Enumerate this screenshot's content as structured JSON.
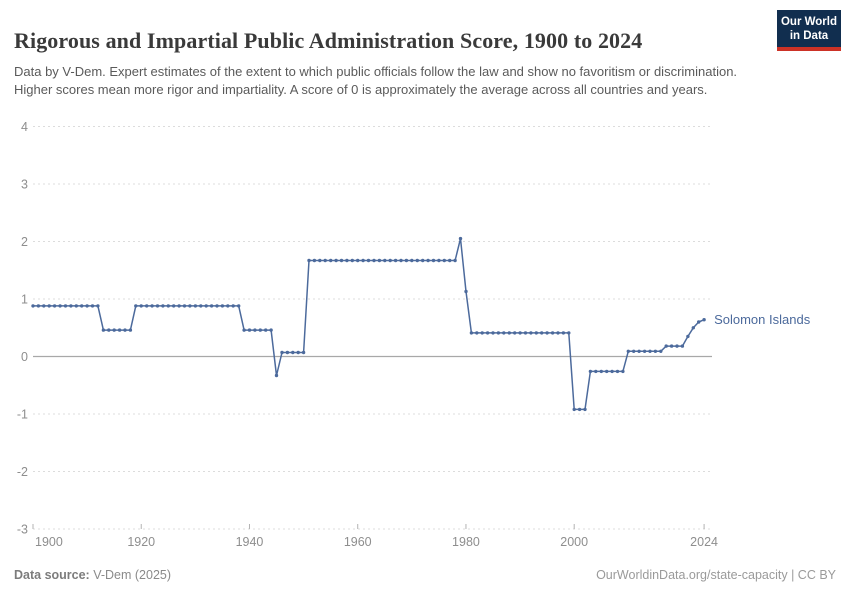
{
  "header": {
    "title": "Rigorous and Impartial Public Administration Score, 1900 to 2024",
    "subtitle": "Data by V-Dem. Expert estimates of the extent to which public officials follow the law and show no favoritism or discrimination. Higher scores mean more rigor and impartiality. A score of 0 is approximately the average across all countries and years.",
    "logo": {
      "line1": "Our World",
      "line2": "in Data"
    }
  },
  "footer": {
    "source_label": "Data source:",
    "source_value": " V-Dem (2025)",
    "note": "OurWorldinData.org/state-capacity | CC BY"
  },
  "colors": {
    "series": "#4c6a9c",
    "grid": "#dcdcdc",
    "zero_line": "#a8a8a8",
    "tick": "#b3b3b3",
    "axis_label": "#8e8e8e",
    "logo_bg": "#112e4f",
    "logo_stripe": "#cc3226"
  },
  "chart_data": {
    "type": "line",
    "title": "Rigorous and Impartial Public Administration Score, 1900 to 2024",
    "entity": "Solomon Islands",
    "xlabel": "",
    "ylabel": "",
    "xlim": [
      1900,
      2024
    ],
    "ylim": [
      -3,
      4
    ],
    "x_ticks": [
      1900,
      1920,
      1940,
      1960,
      1980,
      2000,
      2024
    ],
    "y_ticks": [
      4,
      3,
      2,
      1,
      0,
      -1,
      -2,
      -3
    ],
    "grid": "dashed-horizontal",
    "zero_line": true,
    "legend_position": "end-of-line-label",
    "series": [
      {
        "name": "Solomon Islands",
        "color": "#4c6a9c",
        "runs": [
          {
            "from": 1900,
            "to": 1912,
            "value": 0.88
          },
          {
            "from": 1913,
            "to": 1918,
            "value": 0.46
          },
          {
            "from": 1919,
            "to": 1938,
            "value": 0.88
          },
          {
            "from": 1939,
            "to": 1944,
            "value": 0.46
          },
          {
            "from": 1945,
            "to": 1945,
            "value": -0.33
          },
          {
            "from": 1946,
            "to": 1950,
            "value": 0.07
          },
          {
            "from": 1951,
            "to": 1978,
            "value": 1.67
          },
          {
            "from": 1979,
            "to": 1979,
            "value": 2.05
          },
          {
            "from": 1980,
            "to": 1980,
            "value": 1.13
          },
          {
            "from": 1981,
            "to": 1999,
            "value": 0.41
          },
          {
            "from": 2000,
            "to": 2002,
            "value": -0.92
          },
          {
            "from": 2003,
            "to": 2009,
            "value": -0.26
          },
          {
            "from": 2010,
            "to": 2016,
            "value": 0.09
          },
          {
            "from": 2017,
            "to": 2020,
            "value": 0.18
          },
          {
            "from": 2021,
            "to": 2021,
            "value": 0.35
          },
          {
            "from": 2022,
            "to": 2022,
            "value": 0.5
          },
          {
            "from": 2023,
            "to": 2023,
            "value": 0.6
          },
          {
            "from": 2024,
            "to": 2024,
            "value": 0.64
          }
        ]
      }
    ]
  }
}
